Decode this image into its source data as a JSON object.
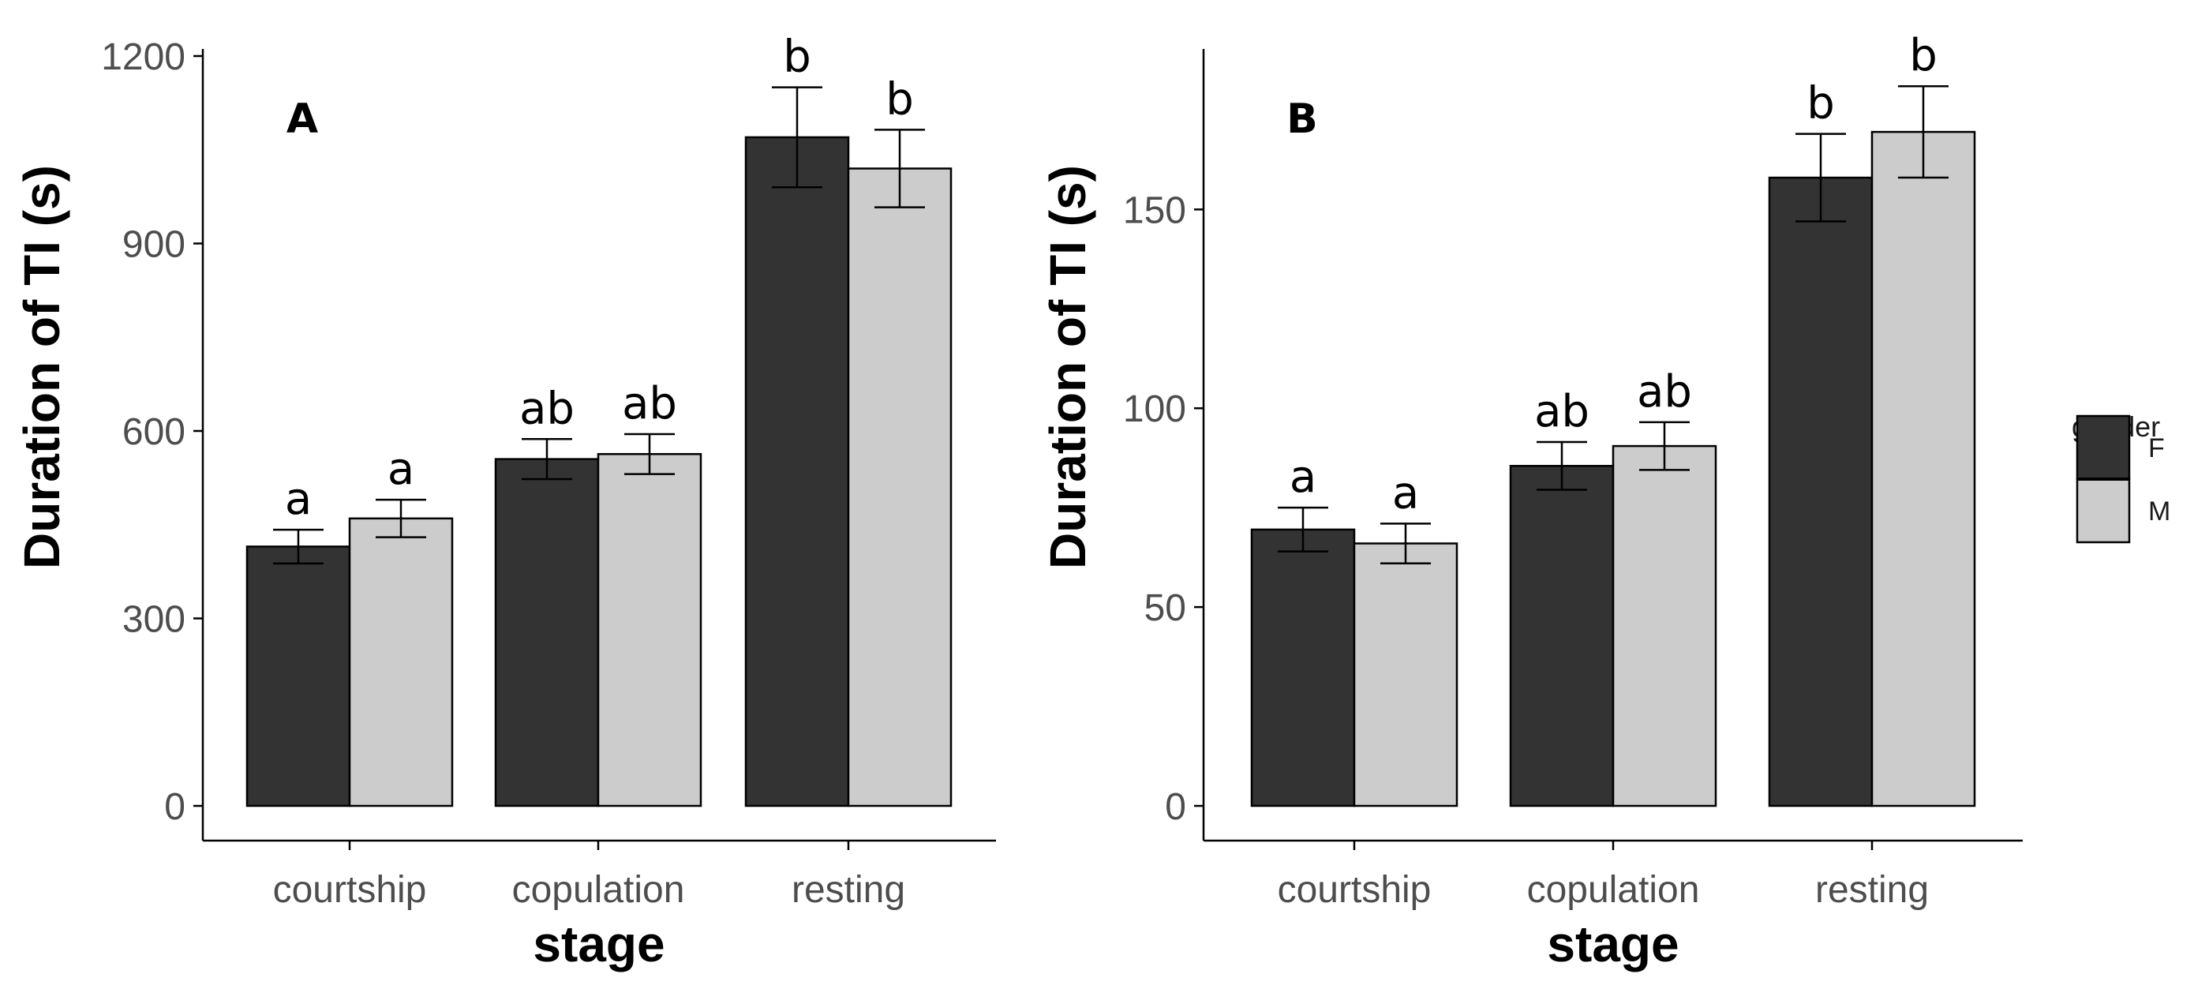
{
  "chart_data": [
    {
      "type": "bar",
      "panel_label": "A",
      "title": "",
      "xlabel": "stage",
      "ylabel": "Duration of TI (s)",
      "categories": [
        "courtship",
        "copulation",
        "resting"
      ],
      "ylim": [
        0,
        1200
      ],
      "yticks": [
        0,
        300,
        600,
        900,
        1200
      ],
      "grid": false,
      "legend": "none",
      "series": [
        {
          "name": "F",
          "values": [
            415,
            555,
            1070
          ],
          "errors": [
            27,
            32,
            80
          ]
        },
        {
          "name": "M",
          "values": [
            460,
            563,
            1020
          ],
          "errors": [
            30,
            32,
            62
          ]
        }
      ],
      "significance_labels": [
        [
          "a",
          "ab",
          "b"
        ],
        [
          "a",
          "ab",
          "b"
        ]
      ]
    },
    {
      "type": "bar",
      "panel_label": "B",
      "title": "",
      "xlabel": "stage",
      "ylabel": "Duration of TI (s)",
      "categories": [
        "courtship",
        "copulation",
        "resting"
      ],
      "ylim": [
        0,
        190
      ],
      "yticks": [
        0,
        50,
        100,
        150
      ],
      "grid": false,
      "legend": "right",
      "series": [
        {
          "name": "F",
          "values": [
            69.5,
            85.5,
            158
          ],
          "errors": [
            5.5,
            6,
            11
          ]
        },
        {
          "name": "M",
          "values": [
            66,
            90.5,
            169.5
          ],
          "errors": [
            5,
            6,
            11.5
          ]
        }
      ],
      "significance_labels": [
        [
          "a",
          "ab",
          "b"
        ],
        [
          "a",
          "ab",
          "b"
        ]
      ]
    }
  ],
  "legend": {
    "title": "gender",
    "items": [
      {
        "label": "F",
        "color": "#333333"
      },
      {
        "label": "M",
        "color": "#cccccc"
      }
    ]
  },
  "colors": {
    "F": "#333333",
    "M": "#cccccc",
    "outline": "#000000",
    "axis": "#000000",
    "tick_text": "#4d4d4d"
  }
}
